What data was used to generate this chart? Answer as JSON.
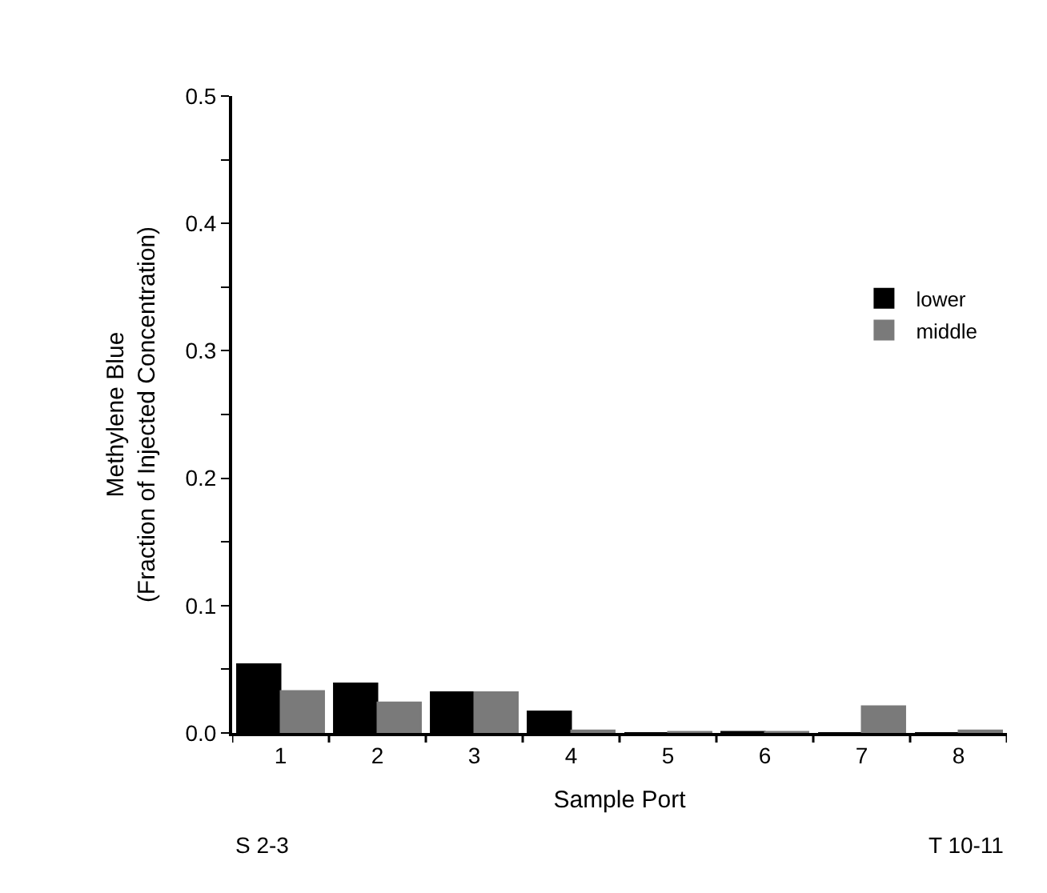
{
  "chart_data": {
    "type": "bar",
    "xlabel": "Sample Port",
    "ylabel": "Methylene Blue\n(Fraction of Injected Concentration)",
    "categories": [
      "1",
      "2",
      "3",
      "4",
      "5",
      "6",
      "7",
      "8"
    ],
    "series": [
      {
        "name": "lower",
        "color": "#000000",
        "values": [
          0.054,
          0.039,
          0.032,
          0.017,
          0,
          0.001,
          0,
          0
        ]
      },
      {
        "name": "middle",
        "color": "#7a7a7a",
        "values": [
          0.033,
          0.024,
          0.032,
          0.002,
          0.001,
          0.001,
          0.021,
          0.002
        ]
      }
    ],
    "ylim": [
      0,
      0.5
    ],
    "yticks": [
      {
        "value": 0,
        "label": "0.0"
      },
      {
        "value": 0.05,
        "label": null
      },
      0.1,
      {
        "value": 0.15,
        "label": null
      },
      0.2,
      {
        "value": 0.25,
        "label": null
      },
      0.3,
      {
        "value": 0.35,
        "label": null
      },
      0.4,
      {
        "value": 0.45,
        "label": null
      },
      0.5
    ],
    "legend": "right",
    "annotations": [
      "S 2-3",
      "T 10-11"
    ]
  }
}
